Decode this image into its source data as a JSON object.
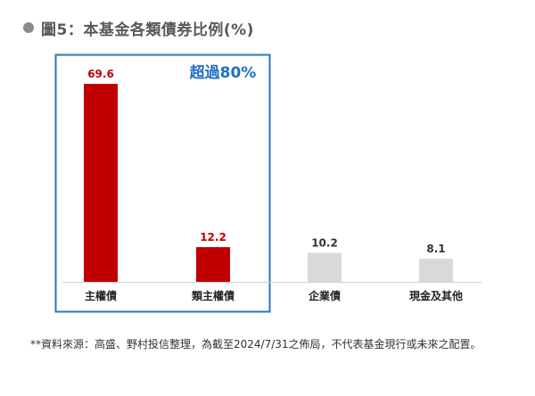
{
  "title": "圖5：本基金各類債券比例(%)",
  "annotation": "超過80%",
  "footnote": "**資料來源：高盛、野村投信整理，為截至2024/7/31之佈局，不代表基金現行或未來之配置。",
  "colors": {
    "highlight_bar": "#c00000",
    "other_bar": "#d9d9d9",
    "box_border": "#2e75b6",
    "annotation": "#1f6fc5"
  },
  "chart_data": {
    "type": "bar",
    "title": "圖5：本基金各類債券比例(%)",
    "categories": [
      "主權債",
      "類主權債",
      "企業債",
      "現金及其他"
    ],
    "values": [
      69.6,
      12.2,
      10.2,
      8.1
    ],
    "data_labels": [
      "69.6",
      "12.2",
      "10.2",
      "8.1"
    ],
    "highlighted": [
      true,
      true,
      false,
      false
    ],
    "ylim": [
      0,
      69.6
    ],
    "grid": false,
    "annotation": "超過80%"
  }
}
